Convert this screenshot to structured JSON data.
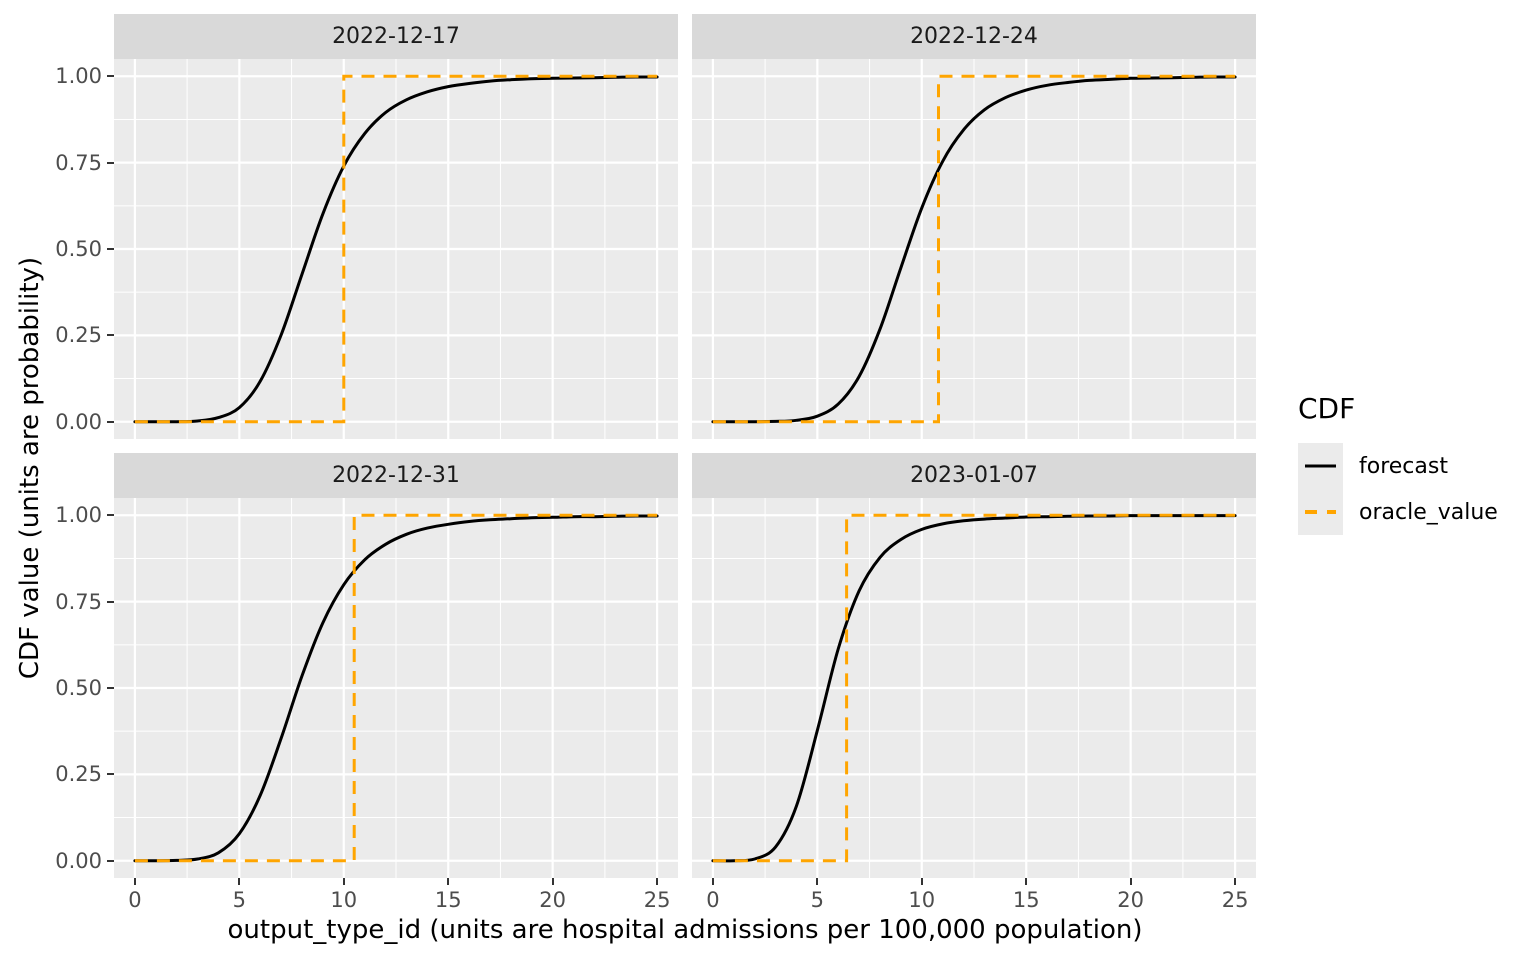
{
  "chart_data": {
    "type": "line",
    "description": "Faceted CDF step/forecast comparison plot (ggplot2 style), 4 facets by date",
    "xlabel": "output_type_id (units are hospital admissions per 100,000 population)",
    "ylabel": "CDF value (units are probability)",
    "xlim": [
      0,
      25
    ],
    "ylim": [
      0,
      1
    ],
    "x_ticks": [
      0,
      5,
      10,
      15,
      20,
      25
    ],
    "x_minor_ticks": [
      2.5,
      7.5,
      12.5,
      17.5,
      22.5
    ],
    "y_ticks": [
      0,
      0.25,
      0.5,
      0.75,
      1
    ],
    "y_tick_labels": [
      "0.00",
      "0.25",
      "0.50",
      "0.75",
      "1.00"
    ],
    "y_minor_ticks": [
      0.125,
      0.375,
      0.625,
      0.875
    ],
    "grid": true,
    "legend": {
      "title": "CDF",
      "position": "right",
      "entries": [
        {
          "label": "forecast",
          "color": "#000000",
          "dash": "solid"
        },
        {
          "label": "oracle_value",
          "color": "#FFA500",
          "dash": "dashed"
        }
      ]
    },
    "colors": {
      "panel_background": "#EBEBEB",
      "strip_background": "#D9D9D9",
      "gridline": "#FFFFFF",
      "tick_label": "#4D4D4D",
      "forecast": "#000000",
      "oracle_value": "#FFA500"
    },
    "forecast_x": [
      0,
      1,
      2,
      3,
      4,
      5,
      6,
      7,
      8,
      9,
      10,
      11,
      12,
      13,
      14,
      15,
      16,
      17,
      18,
      19,
      20,
      21,
      22,
      23,
      24,
      25
    ],
    "facets": [
      {
        "title": "2022-12-17",
        "oracle_value": 10.0,
        "forecast_y": [
          0,
          0,
          0,
          0.002,
          0.012,
          0.041,
          0.117,
          0.251,
          0.427,
          0.602,
          0.74,
          0.834,
          0.895,
          0.932,
          0.955,
          0.97,
          0.979,
          0.986,
          0.99,
          0.993,
          0.994,
          0.995,
          0.996,
          0.997,
          0.998,
          0.998
        ]
      },
      {
        "title": "2022-12-24",
        "oracle_value": 10.8,
        "forecast_y": [
          0,
          0,
          0,
          0.001,
          0.004,
          0.016,
          0.051,
          0.131,
          0.268,
          0.446,
          0.619,
          0.754,
          0.845,
          0.903,
          0.938,
          0.96,
          0.974,
          0.982,
          0.988,
          0.991,
          0.994,
          0.995,
          0.996,
          0.997,
          0.998,
          0.998
        ]
      },
      {
        "title": "2022-12-31",
        "oracle_value": 10.5,
        "forecast_y": [
          0,
          0,
          0.001,
          0.005,
          0.023,
          0.078,
          0.189,
          0.354,
          0.535,
          0.689,
          0.799,
          0.871,
          0.916,
          0.945,
          0.963,
          0.974,
          0.982,
          0.987,
          0.99,
          0.993,
          0.994,
          0.996,
          0.996,
          0.997,
          0.998,
          0.998
        ]
      },
      {
        "title": "2023-01-07",
        "oracle_value": 6.4,
        "forecast_y": [
          0,
          0,
          0.005,
          0.04,
          0.158,
          0.377,
          0.613,
          0.781,
          0.878,
          0.93,
          0.959,
          0.975,
          0.984,
          0.989,
          0.992,
          0.995,
          0.996,
          0.997,
          0.998,
          0.998,
          0.999,
          0.999,
          0.999,
          0.999,
          0.999,
          0.999
        ]
      }
    ]
  }
}
